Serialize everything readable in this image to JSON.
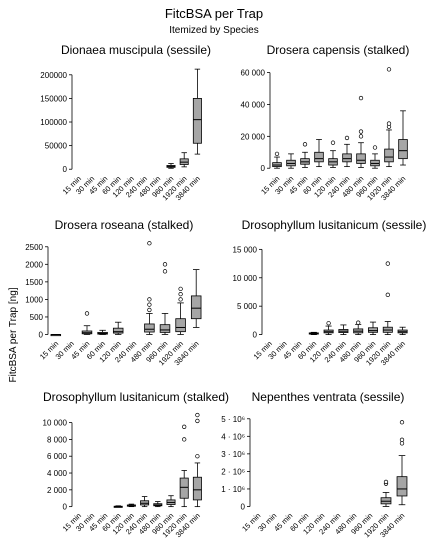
{
  "figure": {
    "title": "FitcBSA per Trap",
    "subtitle": "Itemized by Species",
    "ylabel": "FitcBSA per Trap [ng]"
  },
  "chart_data": [
    {
      "type": "boxplot",
      "title": "Dionaea muscipula (sessile)",
      "categories": [
        "15 min",
        "30 min",
        "45 min",
        "60 min",
        "120 min",
        "240 min",
        "480 min",
        "960 min",
        "1920 min",
        "3840 min"
      ],
      "yticks": [
        0,
        50000,
        100000,
        150000,
        200000
      ],
      "ytick_labels": [
        "0",
        "50000",
        "100000",
        "150000",
        "200000"
      ],
      "ylim": [
        -8000,
        225000
      ],
      "boxes": [
        {
          "category": "960 min",
          "whisker_low": 2000,
          "q1": 4000,
          "median": 6000,
          "q3": 8000,
          "whisker_high": 12000,
          "outliers": []
        },
        {
          "category": "1920 min",
          "whisker_low": 5000,
          "q1": 10000,
          "median": 15000,
          "q3": 22000,
          "whisker_high": 35000,
          "outliers": []
        },
        {
          "category": "3840 min",
          "whisker_low": 32000,
          "q1": 55000,
          "median": 105000,
          "q3": 150000,
          "whisker_high": 212000,
          "outliers": []
        }
      ]
    },
    {
      "type": "boxplot",
      "title": "Drosera capensis (stalked)",
      "categories": [
        "15 min",
        "30 min",
        "45 min",
        "60 min",
        "120 min",
        "240 min",
        "480 min",
        "960 min",
        "1920 min",
        "3840 min"
      ],
      "yticks": [
        0,
        20000,
        40000,
        60000
      ],
      "ytick_labels": [
        "0",
        "20 000",
        "40 000",
        "60 000"
      ],
      "ylim": [
        -3000,
        66000
      ],
      "boxes": [
        {
          "category": "15 min",
          "whisker_low": 0,
          "q1": 1000,
          "median": 2000,
          "q3": 3500,
          "whisker_high": 7000,
          "outliers": [
            9000
          ]
        },
        {
          "category": "30 min",
          "whisker_low": 0,
          "q1": 1500,
          "median": 3000,
          "q3": 5000,
          "whisker_high": 9000,
          "outliers": []
        },
        {
          "category": "45 min",
          "whisker_low": 500,
          "q1": 2500,
          "median": 4000,
          "q3": 6000,
          "whisker_high": 10000,
          "outliers": [
            15000
          ]
        },
        {
          "category": "60 min",
          "whisker_low": 1000,
          "q1": 4000,
          "median": 6000,
          "q3": 10000,
          "whisker_high": 18000,
          "outliers": []
        },
        {
          "category": "120 min",
          "whisker_low": 500,
          "q1": 2000,
          "median": 4000,
          "q3": 6000,
          "whisker_high": 11000,
          "outliers": [
            16000
          ]
        },
        {
          "category": "240 min",
          "whisker_low": 1000,
          "q1": 4000,
          "median": 6000,
          "q3": 9000,
          "whisker_high": 15000,
          "outliers": [
            19000
          ]
        },
        {
          "category": "480 min",
          "whisker_low": 500,
          "q1": 3000,
          "median": 5000,
          "q3": 9000,
          "whisker_high": 16000,
          "outliers": [
            20000,
            23000,
            44000
          ]
        },
        {
          "category": "960 min",
          "whisker_low": 0,
          "q1": 1500,
          "median": 3000,
          "q3": 5000,
          "whisker_high": 9000,
          "outliers": [
            13000
          ]
        },
        {
          "category": "1920 min",
          "whisker_low": 1000,
          "q1": 4000,
          "median": 7000,
          "q3": 12000,
          "whisker_high": 24000,
          "outliers": [
            26000,
            28000,
            62000
          ]
        },
        {
          "category": "3840 min",
          "whisker_low": 2000,
          "q1": 6000,
          "median": 11000,
          "q3": 18000,
          "whisker_high": 36000,
          "outliers": []
        }
      ]
    },
    {
      "type": "boxplot",
      "title": "Drosera roseana (stalked)",
      "categories": [
        "15 min",
        "30 min",
        "45 min",
        "60 min",
        "120 min",
        "240 min",
        "480 min",
        "960 min",
        "1920 min",
        "3840 min"
      ],
      "yticks": [
        0,
        500,
        1000,
        1500,
        2000,
        2500
      ],
      "ytick_labels": [
        "0",
        "500",
        "1000",
        "1500",
        "2000",
        "2500"
      ],
      "ylim": [
        -100,
        2750
      ],
      "boxes": [
        {
          "category": "15 min",
          "whisker_low": 0,
          "q1": 0,
          "median": 0,
          "q3": 0,
          "whisker_high": 0,
          "outliers": []
        },
        {
          "category": "45 min",
          "whisker_low": 0,
          "q1": 20,
          "median": 50,
          "q3": 100,
          "whisker_high": 250,
          "outliers": [
            600
          ]
        },
        {
          "category": "60 min",
          "whisker_low": 0,
          "q1": 10,
          "median": 30,
          "q3": 60,
          "whisker_high": 120,
          "outliers": []
        },
        {
          "category": "120 min",
          "whisker_low": 0,
          "q1": 40,
          "median": 80,
          "q3": 180,
          "whisker_high": 350,
          "outliers": []
        },
        {
          "category": "480 min",
          "whisker_low": 0,
          "q1": 70,
          "median": 150,
          "q3": 300,
          "whisker_high": 600,
          "outliers": [
            700,
            850,
            1000,
            2600
          ]
        },
        {
          "category": "960 min",
          "whisker_low": 0,
          "q1": 60,
          "median": 130,
          "q3": 280,
          "whisker_high": 600,
          "outliers": [
            1800,
            2000
          ]
        },
        {
          "category": "1920 min",
          "whisker_low": 0,
          "q1": 80,
          "median": 200,
          "q3": 450,
          "whisker_high": 900,
          "outliers": [
            1000,
            1150,
            1300
          ]
        },
        {
          "category": "3840 min",
          "whisker_low": 200,
          "q1": 450,
          "median": 750,
          "q3": 1100,
          "whisker_high": 1850,
          "outliers": []
        }
      ]
    },
    {
      "type": "boxplot",
      "title": "Drosophyllum lusitanicum (sessile)",
      "categories": [
        "15 min",
        "30 min",
        "45 min",
        "60 min",
        "120 min",
        "240 min",
        "480 min",
        "960 min",
        "1920 min",
        "3840 min"
      ],
      "yticks": [
        0,
        5000,
        10000,
        15000
      ],
      "ytick_labels": [
        "0",
        "5 000",
        "10 000",
        "15 000"
      ],
      "ylim": [
        -600,
        17000
      ],
      "boxes": [
        {
          "category": "60 min",
          "whisker_low": 0,
          "q1": 100,
          "median": 200,
          "q3": 300,
          "whisker_high": 400,
          "outliers": []
        },
        {
          "category": "120 min",
          "whisker_low": 0,
          "q1": 300,
          "median": 500,
          "q3": 800,
          "whisker_high": 1500,
          "outliers": [
            2000
          ]
        },
        {
          "category": "240 min",
          "whisker_low": 0,
          "q1": 350,
          "median": 600,
          "q3": 900,
          "whisker_high": 1700,
          "outliers": []
        },
        {
          "category": "480 min",
          "whisker_low": 0,
          "q1": 300,
          "median": 600,
          "q3": 1000,
          "whisker_high": 1800,
          "outliers": [
            2100
          ]
        },
        {
          "category": "960 min",
          "whisker_low": 0,
          "q1": 400,
          "median": 700,
          "q3": 1200,
          "whisker_high": 2200,
          "outliers": []
        },
        {
          "category": "1920 min",
          "whisker_low": 0,
          "q1": 400,
          "median": 800,
          "q3": 1300,
          "whisker_high": 2300,
          "outliers": [
            7000,
            12500
          ]
        },
        {
          "category": "3840 min",
          "whisker_low": 0,
          "q1": 300,
          "median": 500,
          "q3": 800,
          "whisker_high": 1300,
          "outliers": []
        }
      ]
    },
    {
      "type": "boxplot",
      "title": "Drosophyllum lusitanicum (stalked)",
      "categories": [
        "15 min",
        "30 min",
        "45 min",
        "60 min",
        "120 min",
        "240 min",
        "480 min",
        "960 min",
        "1920 min",
        "3840 min"
      ],
      "yticks": [
        0,
        2000,
        4000,
        6000,
        8000,
        10000
      ],
      "ytick_labels": [
        "0",
        "2 000",
        "4 000",
        "6 000",
        "8 000",
        "10 000"
      ],
      "ylim": [
        -400,
        11500
      ],
      "boxes": [
        {
          "category": "60 min",
          "whisker_low": 0,
          "q1": 0,
          "median": 0,
          "q3": 50,
          "whisker_high": 100,
          "outliers": []
        },
        {
          "category": "120 min",
          "whisker_low": 0,
          "q1": 50,
          "median": 100,
          "q3": 200,
          "whisker_high": 300,
          "outliers": []
        },
        {
          "category": "240 min",
          "whisker_low": 0,
          "q1": 200,
          "median": 400,
          "q3": 700,
          "whisker_high": 1200,
          "outliers": []
        },
        {
          "category": "480 min",
          "whisker_low": 0,
          "q1": 100,
          "median": 200,
          "q3": 350,
          "whisker_high": 600,
          "outliers": []
        },
        {
          "category": "960 min",
          "whisker_low": 0,
          "q1": 250,
          "median": 500,
          "q3": 800,
          "whisker_high": 1300,
          "outliers": []
        },
        {
          "category": "1920 min",
          "whisker_low": 0,
          "q1": 1000,
          "median": 2300,
          "q3": 3400,
          "whisker_high": 4300,
          "outliers": [
            8000,
            9500
          ]
        },
        {
          "category": "3840 min",
          "whisker_low": 0,
          "q1": 800,
          "median": 2000,
          "q3": 3500,
          "whisker_high": 5200,
          "outliers": [
            6000,
            10200,
            10900
          ]
        }
      ]
    },
    {
      "type": "boxplot",
      "title": "Nepenthes ventrata (sessile)",
      "categories": [
        "15 min",
        "30 min",
        "45 min",
        "60 min",
        "120 min",
        "240 min",
        "480 min",
        "960 min",
        "1920 min",
        "3840 min"
      ],
      "yticks": [
        0,
        1000000,
        2000000,
        3000000,
        4000000,
        5000000
      ],
      "ytick_labels": [
        "0",
        "1 · 10⁶",
        "2 · 10⁶",
        "3 · 10⁶",
        "4 · 10⁶",
        "5 · 10⁶"
      ],
      "ylim": [
        -200000,
        5500000
      ],
      "boxes": [
        {
          "category": "1920 min",
          "whisker_low": 0,
          "q1": 150000,
          "median": 300000,
          "q3": 500000,
          "whisker_high": 800000,
          "outliers": [
            1300000,
            1400000
          ]
        },
        {
          "category": "3840 min",
          "whisker_low": 100000,
          "q1": 600000,
          "median": 1000000,
          "q3": 1700000,
          "whisker_high": 2900000,
          "outliers": [
            3600000,
            3800000,
            4800000
          ]
        }
      ]
    }
  ]
}
